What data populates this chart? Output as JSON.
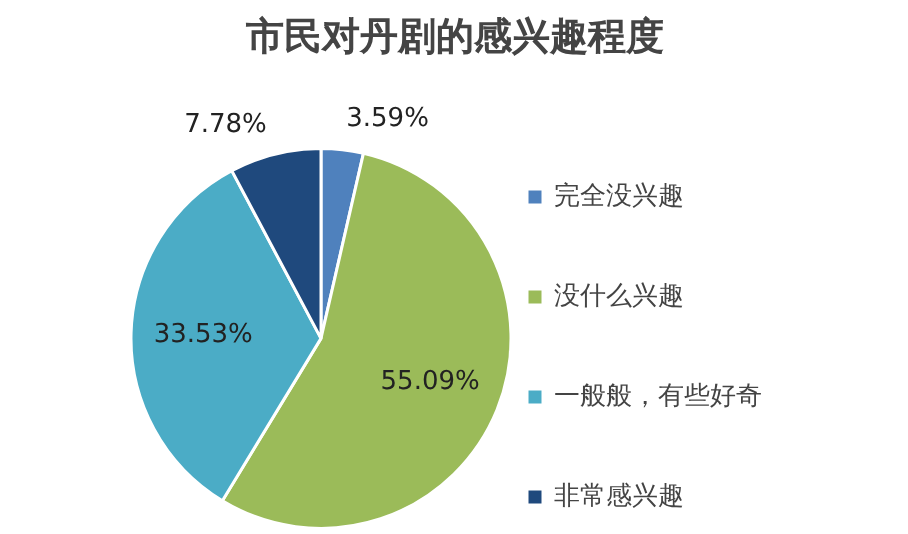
{
  "chart_data": {
    "type": "pie",
    "title": "市民对丹剧的感兴趣程度",
    "categories": [
      "完全没兴趣",
      "没什么兴趣",
      "一般般，有些好奇",
      "非常感兴趣"
    ],
    "values": [
      3.59,
      55.09,
      33.53,
      7.78
    ],
    "colors": [
      "#4f81bd",
      "#9bbb59",
      "#4bacc6",
      "#1f497d"
    ],
    "value_labels": [
      "3.59%",
      "55.09%",
      "33.53%",
      "7.78%"
    ],
    "legend": "right"
  }
}
